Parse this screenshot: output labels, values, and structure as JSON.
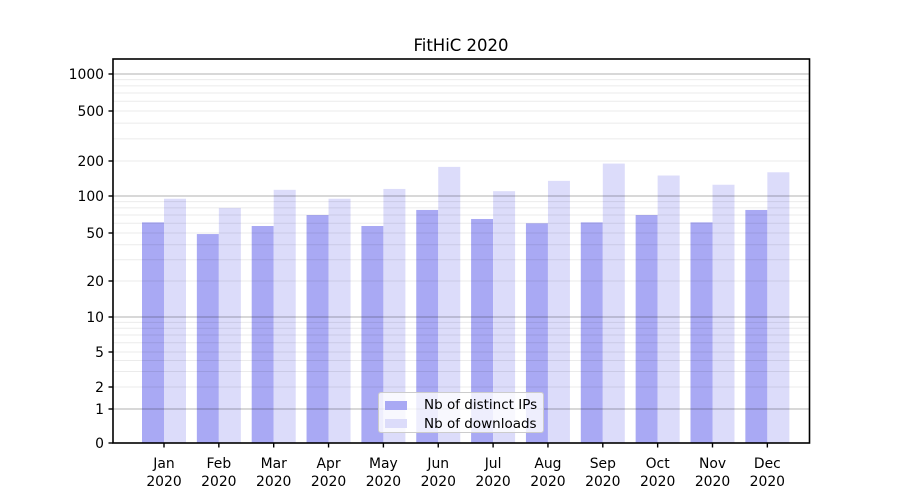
{
  "chart_data": {
    "type": "bar",
    "title": "FitHiC 2020",
    "categories": [
      "Jan 2020",
      "Feb 2020",
      "Mar 2020",
      "Apr 2020",
      "May 2020",
      "Jun 2020",
      "Jul 2020",
      "Aug 2020",
      "Sep 2020",
      "Oct 2020",
      "Nov 2020",
      "Dec 2020"
    ],
    "month_labels": [
      "Jan",
      "Feb",
      "Mar",
      "Apr",
      "May",
      "Jun",
      "Jul",
      "Aug",
      "Sep",
      "Oct",
      "Nov",
      "Dec"
    ],
    "year_label": "2020",
    "series": [
      {
        "name": "Nb of distinct IPs",
        "color": "#a9a9f4",
        "values": [
          61,
          49,
          57,
          70,
          57,
          77,
          65,
          60,
          61,
          70,
          61,
          77
        ]
      },
      {
        "name": "Nb of downloads",
        "color": "#dcdcfa",
        "values": [
          95,
          80,
          113,
          95,
          115,
          178,
          110,
          135,
          190,
          150,
          125,
          160
        ]
      }
    ],
    "xlabel": "",
    "ylabel": "",
    "yscale": "symlog",
    "y_tick_labels": [
      0,
      1,
      2,
      5,
      10,
      20,
      50,
      100,
      200,
      500,
      1000
    ],
    "ylim": [
      0,
      1300
    ],
    "grid": "horizontal major+minor",
    "legend_position": "lower center"
  },
  "colors": {
    "background": "#ffffff",
    "axis": "#000000",
    "major_grid": "rgba(0,0,0,0.30)",
    "minor_grid": "rgba(0,0,0,0.08)",
    "legend_border": "#cccccc",
    "text": "#000000"
  }
}
